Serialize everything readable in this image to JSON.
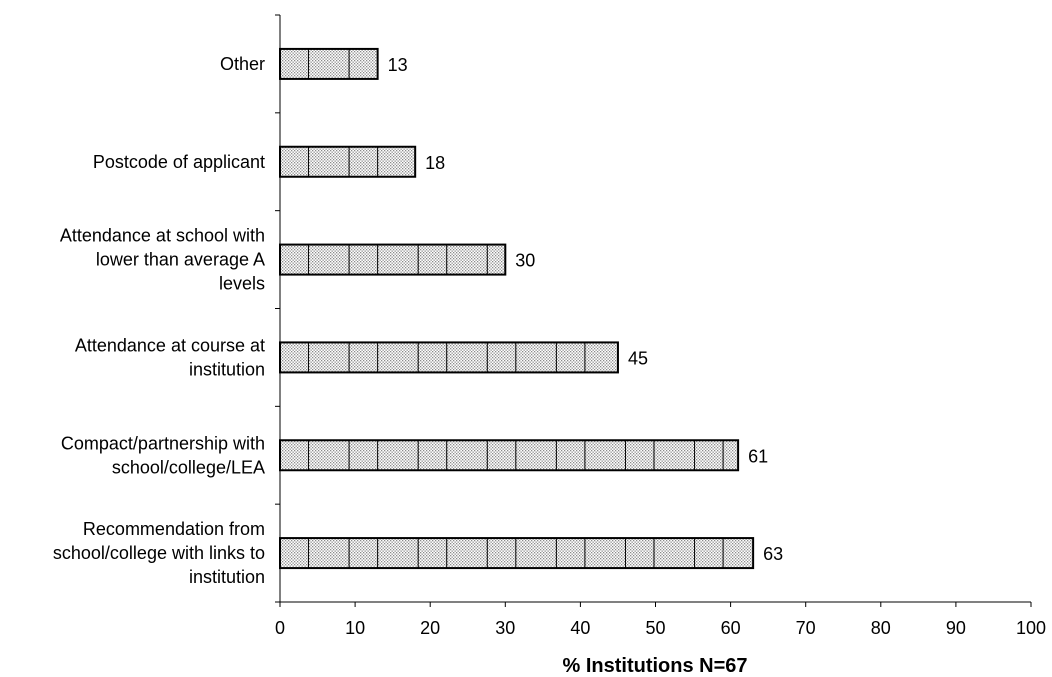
{
  "chart_data": {
    "type": "bar",
    "orientation": "horizontal",
    "categories": [
      [
        "Other"
      ],
      [
        "Postcode of applicant"
      ],
      [
        "Attendance at school with",
        "lower than average A",
        "levels"
      ],
      [
        "Attendance at course at",
        "institution"
      ],
      [
        "Compact/partnership with",
        "school/college/LEA"
      ],
      [
        "Recommendation from",
        "school/college with links to",
        "institution"
      ]
    ],
    "values": [
      13,
      18,
      30,
      45,
      61,
      63
    ],
    "data_labels": [
      "13",
      "18",
      "30",
      "45",
      "61",
      "63"
    ],
    "xlabel": "% Institutions N=67",
    "xlim": [
      0,
      100
    ],
    "x_ticks": [
      "0",
      "10",
      "20",
      "30",
      "40",
      "50",
      "60",
      "70",
      "80",
      "90",
      "100"
    ],
    "grid": false,
    "legend": false,
    "bar_fill": "#d9d9d9",
    "bar_stroke": "#000000"
  }
}
